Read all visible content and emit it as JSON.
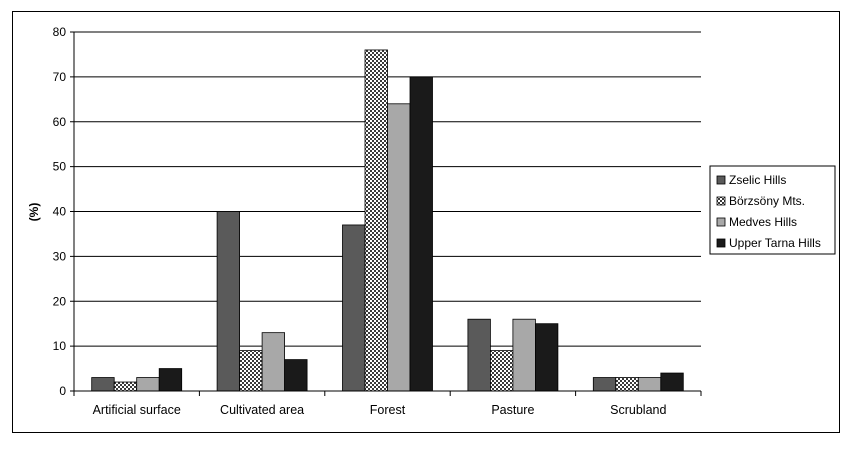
{
  "chart_data": {
    "type": "bar",
    "categories": [
      "Artificial surface",
      "Cultivated area",
      "Forest",
      "Pasture",
      "Scrubland"
    ],
    "series": [
      {
        "name": "Zselic Hills",
        "values": [
          3,
          40,
          37,
          16,
          3
        ],
        "color": "#5a5a5a",
        "pattern": "solid"
      },
      {
        "name": "Börzsöny Mts.",
        "values": [
          2,
          9,
          76,
          9,
          3
        ],
        "color": "#ffffff",
        "pattern": "checker"
      },
      {
        "name": "Medves Hills",
        "values": [
          3,
          13,
          64,
          16,
          3
        ],
        "color": "#a8a8a8",
        "pattern": "solid"
      },
      {
        "name": "Upper Tarna Hills",
        "values": [
          5,
          7,
          70,
          15,
          4
        ],
        "color": "#1a1a1a",
        "pattern": "solid"
      }
    ],
    "ylabel": "(%)",
    "xlabel": "",
    "title": "",
    "ylim": [
      0,
      80
    ],
    "yticks": [
      0,
      10,
      20,
      30,
      40,
      50,
      60,
      70,
      80
    ],
    "grid": true,
    "legend_position": "right"
  }
}
